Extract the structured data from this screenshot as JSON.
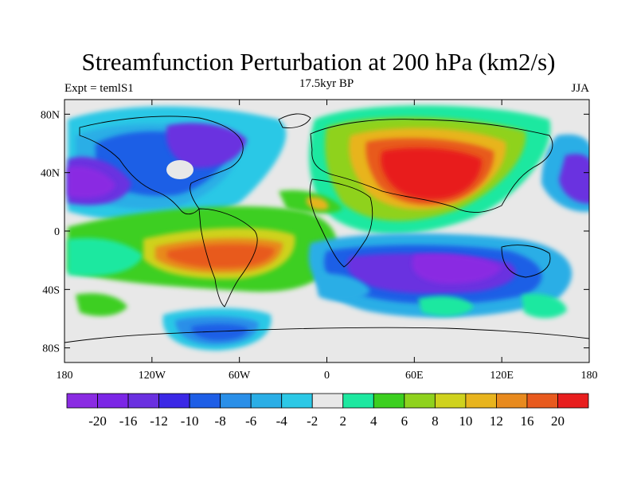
{
  "chart_data": {
    "type": "heatmap",
    "title": "Streamfunction Perturbation at 200 hPa (km2/s)",
    "left_subtitle": "Expt = temlS1",
    "center_subtitle": "17.5kyr BP",
    "right_subtitle": "JJA",
    "xlim": [
      -180,
      180
    ],
    "ylim": [
      -90,
      90
    ],
    "x_ticks": [
      {
        "value": -180,
        "label": "180"
      },
      {
        "value": -120,
        "label": "120W"
      },
      {
        "value": -60,
        "label": "60W"
      },
      {
        "value": 0,
        "label": "0"
      },
      {
        "value": 60,
        "label": "60E"
      },
      {
        "value": 120,
        "label": "120E"
      },
      {
        "value": 180,
        "label": "180"
      }
    ],
    "y_ticks": [
      {
        "value": 80,
        "label": "80N"
      },
      {
        "value": 40,
        "label": "40N"
      },
      {
        "value": 0,
        "label": "0"
      },
      {
        "value": -40,
        "label": "40S"
      },
      {
        "value": -80,
        "label": "80S"
      }
    ],
    "colorbar": {
      "colors": [
        "#8a2be2",
        "#7b26e6",
        "#6a30e0",
        "#3b28e6",
        "#1e5ee6",
        "#2a8fe8",
        "#2aaee6",
        "#2cc8e6",
        "#e8e8e8",
        "#1ee8a0",
        "#3ccf20",
        "#8fd21e",
        "#cfd21e",
        "#e8b41e",
        "#e88a1e",
        "#e85a1e",
        "#e81e1e"
      ],
      "labels": [
        "-20",
        "-16",
        "-12",
        "-10",
        "-8",
        "-6",
        "-4",
        "-2",
        "2",
        "4",
        "6",
        "8",
        "10",
        "12",
        "16",
        "20"
      ]
    },
    "features": [
      {
        "name": "north-pacific-low",
        "lon": -160,
        "lat": 35,
        "value": -18
      },
      {
        "name": "north-america-low",
        "lon": -95,
        "lat": 62,
        "value": -14
      },
      {
        "name": "western-atlantic-low",
        "lon": -60,
        "lat": 38,
        "value": -6
      },
      {
        "name": "great-lakes-high",
        "lon": -110,
        "lat": 40,
        "value": 2
      },
      {
        "name": "north-atlantic-high",
        "lon": -5,
        "lat": 55,
        "value": 6
      },
      {
        "name": "asia-high",
        "lon": 80,
        "lat": 40,
        "value": 20
      },
      {
        "name": "west-pacific-low",
        "lon": 175,
        "lat": 35,
        "value": -14
      },
      {
        "name": "south-america-high",
        "lon": -60,
        "lat": -20,
        "value": 20
      },
      {
        "name": "indian-ocean-low",
        "lon": 110,
        "lat": -25,
        "value": -18
      },
      {
        "name": "south-atlantic-low",
        "lon": 20,
        "lat": -40,
        "value": -8
      },
      {
        "name": "southeast-pacific-high",
        "lon": 130,
        "lat": -50,
        "value": 6
      },
      {
        "name": "antarctic-low",
        "lon": -75,
        "lat": -75,
        "value": -8
      }
    ]
  }
}
